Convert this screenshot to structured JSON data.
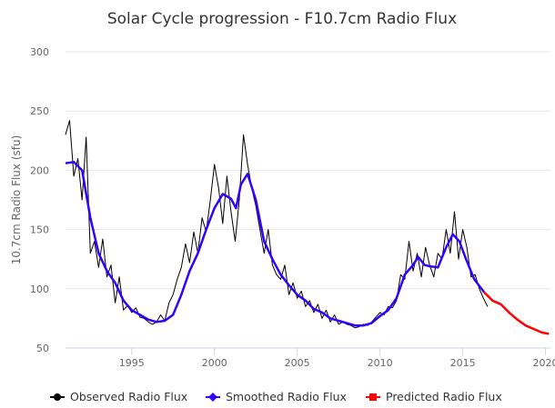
{
  "chart_data": {
    "type": "line",
    "title": "Solar Cycle progression - F10.7cm Radio Flux",
    "xlabel": "",
    "ylabel": "10.7cm Radio Flux (sfu)",
    "xlim": [
      1991,
      2020.3
    ],
    "ylim": [
      50,
      300
    ],
    "x_ticks": [
      1995,
      2000,
      2005,
      2010,
      2015,
      2020
    ],
    "y_ticks": [
      50,
      100,
      150,
      200,
      250,
      300
    ],
    "grid": true,
    "legend_position": "bottom",
    "colors": {
      "observed": "#000000",
      "smoothed": "#3300ff",
      "predicted": "#ff0000"
    },
    "series": [
      {
        "name": "Observed Radio Flux",
        "x_start": 1991.0,
        "x_step": 0.25,
        "values": [
          230,
          242,
          195,
          210,
          175,
          228,
          130,
          140,
          118,
          142,
          110,
          120,
          88,
          110,
          82,
          86,
          80,
          84,
          76,
          75,
          72,
          70,
          72,
          78,
          73,
          88,
          95,
          108,
          118,
          138,
          122,
          148,
          130,
          160,
          148,
          175,
          205,
          185,
          155,
          195,
          165,
          140,
          175,
          230,
          205,
          185,
          170,
          150,
          130,
          150,
          120,
          112,
          108,
          120,
          95,
          105,
          92,
          98,
          85,
          90,
          80,
          87,
          75,
          82,
          72,
          78,
          70,
          72,
          70,
          69,
          67,
          68,
          70,
          69,
          72,
          76,
          80,
          78,
          85,
          84,
          90,
          112,
          108,
          140,
          115,
          130,
          110,
          135,
          120,
          110,
          130,
          125,
          150,
          130,
          165,
          125,
          150,
          135,
          110,
          112,
          100,
          92,
          85
        ]
      },
      {
        "name": "Smoothed Radio Flux",
        "x": [
          1991.0,
          1991.5,
          1992.0,
          1992.5,
          1993.0,
          1993.5,
          1994.0,
          1994.5,
          1995.0,
          1995.5,
          1996.0,
          1996.5,
          1997.0,
          1997.5,
          1998.0,
          1998.5,
          1999.0,
          1999.5,
          2000.0,
          2000.5,
          2001.0,
          2001.3,
          2001.6,
          2002.0,
          2002.5,
          2003.0,
          2003.5,
          2004.0,
          2004.5,
          2005.0,
          2005.5,
          2006.0,
          2006.5,
          2007.0,
          2007.5,
          2008.0,
          2008.5,
          2009.0,
          2009.5,
          2010.0,
          2010.5,
          2011.0,
          2011.5,
          2012.0,
          2012.3,
          2012.7,
          2013.0,
          2013.5,
          2014.0,
          2014.4,
          2014.8,
          2015.2,
          2015.7,
          2016.3
        ],
        "values": [
          206,
          207,
          200,
          160,
          130,
          115,
          105,
          90,
          82,
          78,
          74,
          72,
          73,
          78,
          95,
          115,
          130,
          150,
          168,
          180,
          176,
          168,
          188,
          197,
          175,
          140,
          125,
          112,
          103,
          95,
          90,
          83,
          80,
          75,
          73,
          71,
          69,
          69,
          71,
          77,
          82,
          92,
          112,
          120,
          127,
          120,
          119,
          118,
          135,
          146,
          140,
          125,
          108,
          97
        ]
      },
      {
        "name": "Predicted Radio Flux",
        "x": [
          2016.3,
          2016.8,
          2017.3,
          2017.8,
          2018.3,
          2018.8,
          2019.3,
          2019.8,
          2020.2
        ],
        "values": [
          97,
          90,
          87,
          80,
          74,
          69,
          66,
          63,
          62
        ]
      }
    ]
  }
}
